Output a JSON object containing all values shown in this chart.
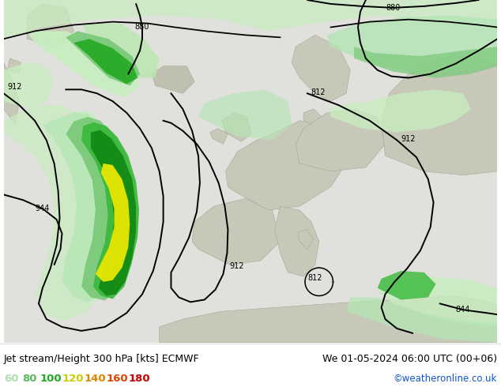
{
  "title_left": "Jet stream/Height 300 hPa [kts] ECMWF",
  "title_right": "We 01-05-2024 06:00 UTC (00+06)",
  "credit": "©weatheronline.co.uk",
  "legend_values": [
    60,
    80,
    100,
    120,
    140,
    160,
    180
  ],
  "legend_colors": [
    "#b4e6b4",
    "#78c878",
    "#22aa22",
    "#d4dd00",
    "#f0a000",
    "#e05000",
    "#cc0000"
  ],
  "bg_color": "#ffffff",
  "ocean_color": "#e8e8e8",
  "land_color": "#d8d8c8",
  "light_green_jet": "#c8eec0",
  "mid_green_jet": "#90d890",
  "dark_green_jet": "#38b838",
  "darker_green_jet": "#108810",
  "yellow_jet": "#e8e800",
  "fig_width": 6.34,
  "fig_height": 4.9,
  "dpi": 100
}
